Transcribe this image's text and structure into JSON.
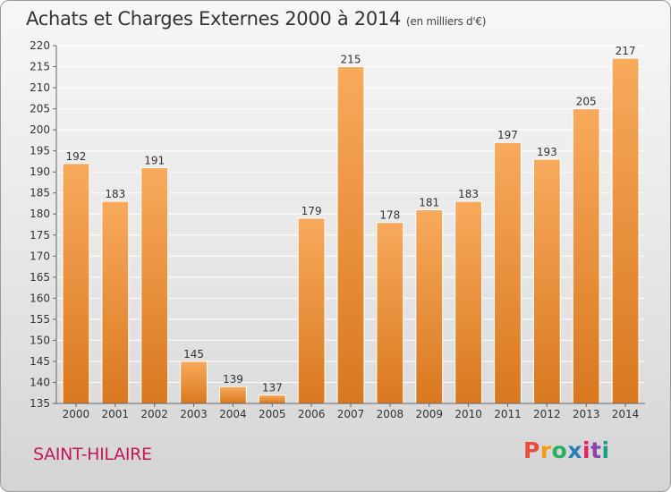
{
  "header": {
    "title": "Achats et Charges Externes 2000 à 2014",
    "subtitle": "(en milliers d'€)"
  },
  "footer": {
    "place": "SAINT-HILAIRE",
    "logo": "Proxiti"
  },
  "colors": {
    "bar_light": "#f8aa5c",
    "bar_dark": "#d9781f",
    "grid": "#ffffff",
    "axis_text": "#333333"
  },
  "chart_data": {
    "type": "bar",
    "title": "Achats et Charges Externes 2000 à 2014",
    "subtitle": "(en milliers d'€)",
    "xlabel": "",
    "ylabel": "",
    "categories": [
      "2000",
      "2001",
      "2002",
      "2003",
      "2004",
      "2005",
      "2006",
      "2007",
      "2008",
      "2009",
      "2010",
      "2011",
      "2012",
      "2013",
      "2014"
    ],
    "values": [
      192,
      183,
      191,
      145,
      139,
      137,
      179,
      215,
      178,
      181,
      183,
      197,
      193,
      205,
      217
    ],
    "ylim": [
      135,
      220
    ],
    "yticks": [
      135,
      140,
      145,
      150,
      155,
      160,
      165,
      170,
      175,
      180,
      185,
      190,
      195,
      200,
      205,
      210,
      215,
      220
    ],
    "grid": true,
    "legend": "none"
  }
}
